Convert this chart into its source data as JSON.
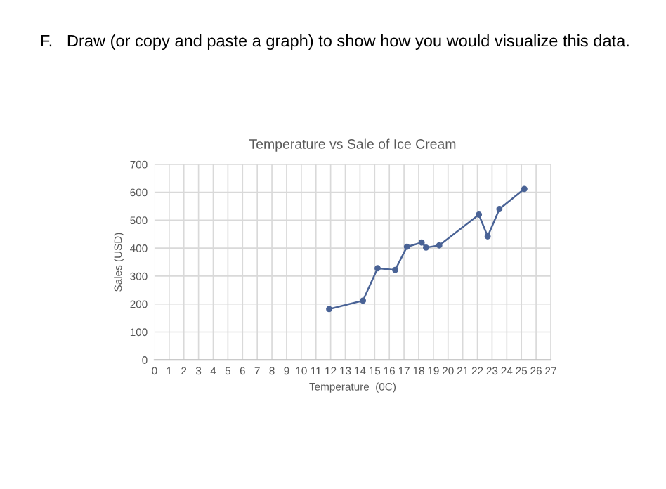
{
  "chart_data": {
    "type": "line",
    "title": "Temperature vs Sale of Ice Cream",
    "xlabel": "Temperature  (0C)",
    "ylabel": "Sales (USD)",
    "annotations": [
      "F.   Draw (or copy and paste a graph) to show how you would visualize this data."
    ],
    "x": [
      11.9,
      14.2,
      15.2,
      16.4,
      17.2,
      18.2,
      18.5,
      19.4,
      22.1,
      22.7,
      23.5,
      25.2
    ],
    "series": [
      {
        "color": "#4a6396",
        "values": [
          182,
          212,
          328,
          322,
          405,
          420,
          402,
          410,
          520,
          442,
          540,
          612
        ]
      }
    ],
    "xlim": [
      0,
      27
    ],
    "xticks": [
      0,
      1,
      2,
      3,
      4,
      5,
      6,
      7,
      8,
      9,
      10,
      11,
      12,
      13,
      14,
      15,
      16,
      17,
      18,
      19,
      20,
      21,
      22,
      23,
      24,
      25,
      26,
      27
    ],
    "ylim": [
      0,
      700
    ],
    "yticks": [
      0,
      100,
      200,
      300,
      400,
      500,
      600,
      700
    ],
    "grid": true,
    "marker": "circle",
    "line_style": "solid"
  }
}
